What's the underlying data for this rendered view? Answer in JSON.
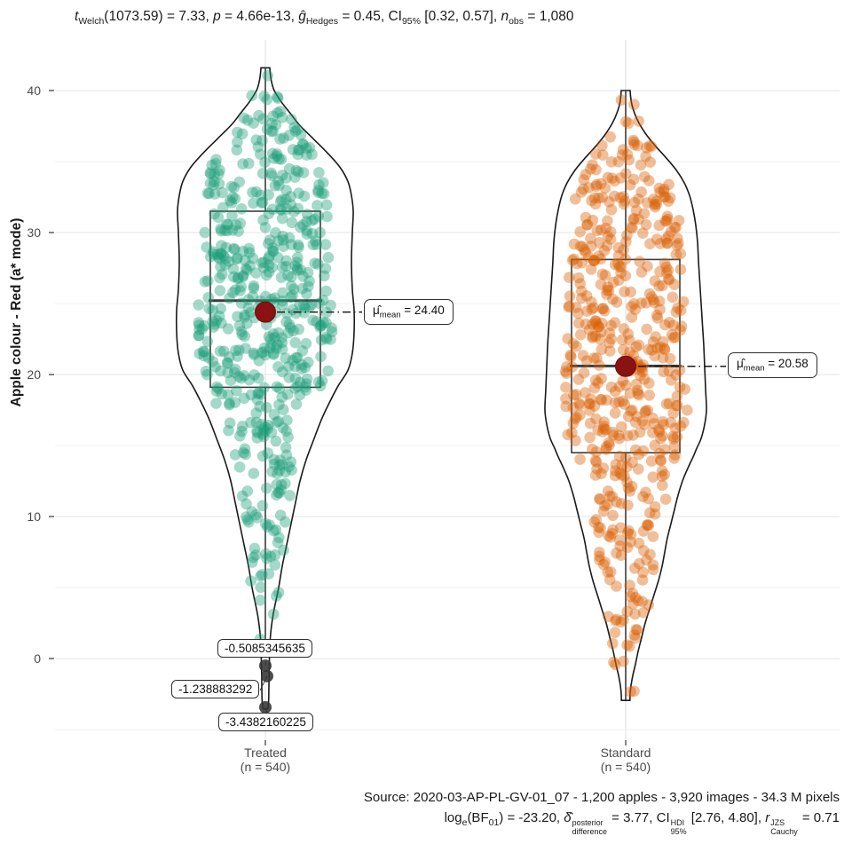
{
  "title": {
    "t": "t",
    "t_sub": "Welch",
    "seg1": "(1073.59) = 7.33, ",
    "p": "p",
    "seg2": " = 4.66e-13, ",
    "g": "ĝ",
    "g_sub": "Hedges",
    "seg3": " = 0.45, CI",
    "ci_sub": "95%",
    "seg4": " [0.32, 0.57], ",
    "n": "n",
    "n_sub": "obs",
    "seg5": " = 1,080"
  },
  "y_axis": {
    "title": "Apple colour - Red (a* mode)",
    "ticks": [
      "40",
      "30",
      "20",
      "10",
      "0"
    ]
  },
  "x_axis": {
    "groups": [
      {
        "name": "Treated",
        "n_label": "(n = 540)"
      },
      {
        "name": "Standard",
        "n_label": "(n = 540)"
      }
    ]
  },
  "mean_labels": [
    {
      "mu": "μ̂",
      "sub": "mean",
      "eq": " = 24.40"
    },
    {
      "mu": "μ̂",
      "sub": "mean",
      "eq": " = 20.58"
    }
  ],
  "outlier_labels": [
    "-0.5085345635",
    "-1.238883292",
    "-3.4382160225"
  ],
  "caption": {
    "source": "Source: 2020-03-AP-PL-GV-01_07 - 1,200 apples - 3,920 images - 34.3 M pixels",
    "bayes": {
      "log": "log",
      "log_sub": "e",
      "seg1": "(BF",
      "bf_sub": "01",
      "seg2": ") = -23.20, ",
      "delta": "δ̂",
      "delta_sup": "posterior",
      "delta_sub": "difference",
      "seg3": " = 3.77, CI",
      "ci_sup": "HDI",
      "ci_sub": "95%",
      "seg4": " [2.76, 4.80], ",
      "r": "r",
      "r_sup": "JZS",
      "r_sub": "Cauchy",
      "seg5": " = 0.71"
    }
  },
  "colors": {
    "treated_points": "#1B9E77",
    "standard_points": "#D95F02",
    "mean_dot": "#8B1212",
    "mean_dot_edge": "#6E0E0E",
    "outlier_dot": "#343434",
    "violin_stroke": "#1a1a1a",
    "box_stroke": "#3c3c3c",
    "grid_major": "#e3e3e3",
    "grid_minor": "#f0f0f0",
    "tick_mark": "#333333",
    "leader_line": "#1a1a1a"
  },
  "chart_data": {
    "type": "violin+box+jitter",
    "title": "t Welch(1073.59) = 7.33, p = 4.66e-13, g Hedges = 0.45, CI 95% [0.32, 0.57], n obs = 1,080",
    "caption_source": "Source: 2020-03-AP-PL-GV-01_07 - 1,200 apples - 3,920 images - 34.3 M pixels",
    "caption_bayes": "log e(BF 01) = -23.20, delta-hat posterior difference = 3.77, CI HDI 95% [2.76, 4.80], r JZS Cauchy = 0.71",
    "ylabel": "Apple colour - Red (a* mode)",
    "ylim": [
      -5.5,
      43.5
    ],
    "y_major_ticks": [
      0,
      10,
      20,
      30,
      40
    ],
    "y_minor_ticks": [
      -5,
      5,
      15,
      25,
      35
    ],
    "categories": [
      "Treated",
      "Standard"
    ],
    "legend": "none",
    "grid": true,
    "groups": [
      {
        "name": "Treated",
        "n": 540,
        "color": "#1B9E77",
        "mean": 24.4,
        "median": 25.2,
        "q1": 19.1,
        "q3": 31.5,
        "whisker_low": 0.5,
        "whisker_high": 41.6,
        "outliers": [
          -0.5085345635,
          -1.238883292,
          -3.4382160225
        ],
        "violin_profile": [
          [
            41.6,
            5
          ],
          [
            41.2,
            5.5
          ],
          [
            40.6,
            7
          ],
          [
            40.0,
            10
          ],
          [
            39.2,
            18
          ],
          [
            38.4,
            28
          ],
          [
            37.6,
            38
          ],
          [
            36.6,
            54
          ],
          [
            35.6,
            70
          ],
          [
            34.6,
            84
          ],
          [
            33.6,
            93
          ],
          [
            32.6,
            97
          ],
          [
            31.5,
            99
          ],
          [
            30.0,
            98
          ],
          [
            28.0,
            97
          ],
          [
            26.0,
            98
          ],
          [
            24.5,
            100
          ],
          [
            23.0,
            100
          ],
          [
            21.5,
            98
          ],
          [
            20.3,
            93
          ],
          [
            19.2,
            82
          ],
          [
            18.0,
            72
          ],
          [
            16.8,
            63
          ],
          [
            15.5,
            55
          ],
          [
            14.0,
            46
          ],
          [
            12.5,
            39
          ],
          [
            11.0,
            34
          ],
          [
            9.5,
            29
          ],
          [
            8.0,
            24
          ],
          [
            6.5,
            19
          ],
          [
            5.0,
            15
          ],
          [
            3.8,
            11
          ],
          [
            2.8,
            8
          ],
          [
            1.8,
            6
          ],
          [
            0.8,
            5
          ],
          [
            0.0,
            4.6
          ],
          [
            -1.0,
            4.2
          ],
          [
            -2.0,
            4.0
          ],
          [
            -2.8,
            3.8
          ],
          [
            -3.3,
            3.2
          ],
          [
            -3.55,
            2.5
          ]
        ]
      },
      {
        "name": "Standard",
        "n": 540,
        "color": "#D95F02",
        "mean": 20.58,
        "median": 20.6,
        "q1": 14.5,
        "q3": 28.1,
        "whisker_low": -2.9,
        "whisker_high": 40.0,
        "outliers": [],
        "violin_profile": [
          [
            40.0,
            5
          ],
          [
            39.6,
            5.5
          ],
          [
            39.0,
            7
          ],
          [
            38.4,
            10
          ],
          [
            37.7,
            15
          ],
          [
            37.0,
            22
          ],
          [
            36.2,
            32
          ],
          [
            35.3,
            45
          ],
          [
            34.4,
            57
          ],
          [
            33.5,
            66
          ],
          [
            32.6,
            72
          ],
          [
            31.6,
            76
          ],
          [
            30.5,
            79
          ],
          [
            29.3,
            81
          ],
          [
            28.0,
            82
          ],
          [
            26.5,
            83.5
          ],
          [
            25.0,
            85
          ],
          [
            23.5,
            86.5
          ],
          [
            22.0,
            88
          ],
          [
            20.5,
            89
          ],
          [
            19.0,
            90
          ],
          [
            17.5,
            91
          ],
          [
            16.5,
            89
          ],
          [
            15.5,
            85
          ],
          [
            14.8,
            80
          ],
          [
            14.2,
            76
          ],
          [
            13.4,
            70
          ],
          [
            12.5,
            64
          ],
          [
            11.5,
            59
          ],
          [
            10.5,
            55
          ],
          [
            9.5,
            51
          ],
          [
            8.5,
            47
          ],
          [
            7.5,
            44
          ],
          [
            6.5,
            41
          ],
          [
            5.5,
            37
          ],
          [
            4.5,
            32
          ],
          [
            3.5,
            27
          ],
          [
            2.5,
            22
          ],
          [
            1.5,
            18
          ],
          [
            0.5,
            14
          ],
          [
            -0.4,
            11
          ],
          [
            -1.2,
            8
          ],
          [
            -1.9,
            6
          ],
          [
            -2.5,
            5
          ],
          [
            -2.95,
            4.8
          ]
        ]
      }
    ]
  }
}
